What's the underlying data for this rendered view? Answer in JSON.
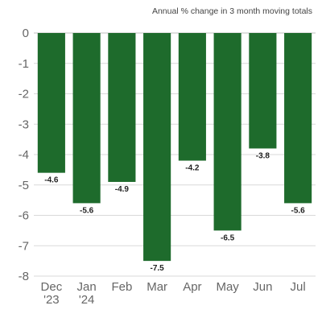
{
  "chart_data": {
    "type": "bar",
    "title": "",
    "subtitle": "Annual % change in 3 month moving totals",
    "xlabel": "",
    "ylabel": "",
    "categories": [
      [
        "Dec",
        "'23"
      ],
      [
        "Jan",
        "'24"
      ],
      [
        "Feb"
      ],
      [
        "Mar"
      ],
      [
        "Apr"
      ],
      [
        "May"
      ],
      [
        "Jun"
      ],
      [
        "Jul"
      ]
    ],
    "values": [
      -4.6,
      -5.6,
      -4.9,
      -7.5,
      -4.2,
      -6.5,
      -3.8,
      -5.6
    ],
    "value_labels": [
      "-4.6",
      "-5.6",
      "-4.9",
      "-7.5",
      "-4.2",
      "-6.5",
      "-3.8",
      "-5.6"
    ],
    "ylim": [
      -8,
      0
    ],
    "yticks": [
      0,
      -1,
      -2,
      -3,
      -4,
      -5,
      -6,
      -7,
      -8
    ],
    "ytick_labels": [
      "0",
      "-1",
      "-2",
      "-3",
      "-4",
      "-5",
      "-6",
      "-7",
      "-8"
    ],
    "grid": true,
    "legend": "none",
    "bar_color": "#1e6b2c"
  }
}
